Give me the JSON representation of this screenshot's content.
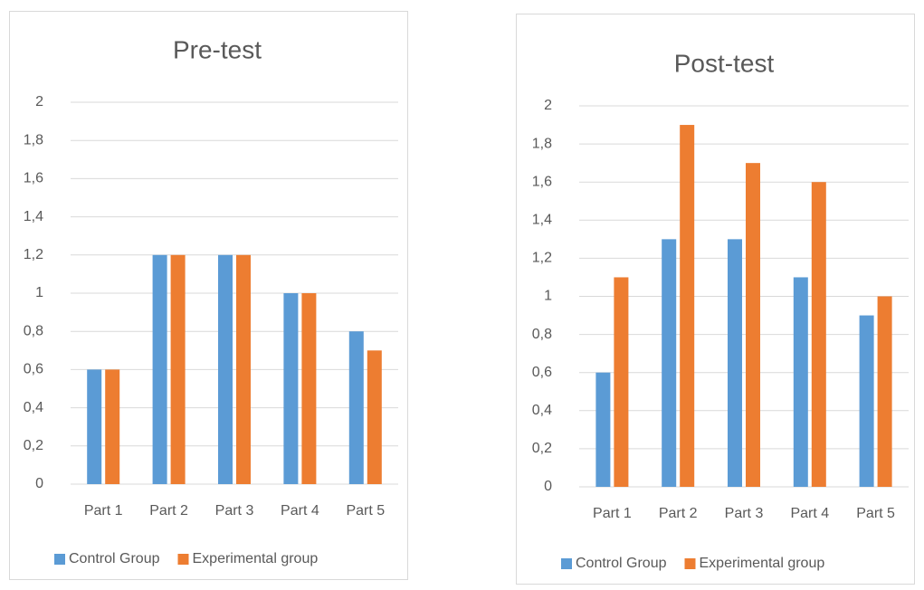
{
  "chart_data": [
    {
      "type": "bar",
      "title": "Pre-test",
      "categories": [
        "Part 1",
        "Part 2",
        "Part 3",
        "Part 4",
        "Part 5"
      ],
      "series": [
        {
          "name": "Control Group",
          "color": "#5b9bd5",
          "values": [
            0.6,
            1.2,
            1.2,
            1,
            0.8
          ]
        },
        {
          "name": "Experimental group",
          "color": "#ed7d31",
          "values": [
            0.6,
            1.2,
            1.2,
            1,
            0.7
          ]
        }
      ],
      "ylim": [
        0,
        2
      ],
      "yticks": [
        0,
        {
          "value": 0.2,
          "label": "0,2"
        },
        {
          "value": 0.4,
          "label": "0,4"
        },
        {
          "value": 0.6,
          "label": "0,6"
        },
        {
          "value": 0.8,
          "label": "0,8"
        },
        1,
        {
          "value": 1.2,
          "label": "1,2"
        },
        {
          "value": 1.4,
          "label": "1,4"
        },
        {
          "value": 1.6,
          "label": "1,6"
        },
        {
          "value": 1.8,
          "label": "1,8"
        },
        2
      ],
      "grid": true,
      "legend": "bottom"
    },
    {
      "type": "bar",
      "title": "Post-test",
      "categories": [
        "Part 1",
        "Part 2",
        "Part 3",
        "Part 4",
        "Part 5"
      ],
      "series": [
        {
          "name": "Control Group",
          "color": "#5b9bd5",
          "values": [
            0.6,
            1.3,
            1.3,
            1.1,
            0.9
          ]
        },
        {
          "name": "Experimental group",
          "color": "#ed7d31",
          "values": [
            1.1,
            1.9,
            1.7,
            1.6,
            1
          ]
        }
      ],
      "ylim": [
        0,
        2
      ],
      "yticks": [
        0,
        {
          "value": 0.2,
          "label": "0,2"
        },
        {
          "value": 0.4,
          "label": "0,4"
        },
        {
          "value": 0.6,
          "label": "0,6"
        },
        {
          "value": 0.8,
          "label": "0,8"
        },
        1,
        {
          "value": 1.2,
          "label": "1,2"
        },
        {
          "value": 1.4,
          "label": "1,4"
        },
        {
          "value": 1.6,
          "label": "1,6"
        },
        {
          "value": 1.8,
          "label": "1,8"
        },
        2
      ],
      "grid": true,
      "legend": "bottom"
    }
  ]
}
